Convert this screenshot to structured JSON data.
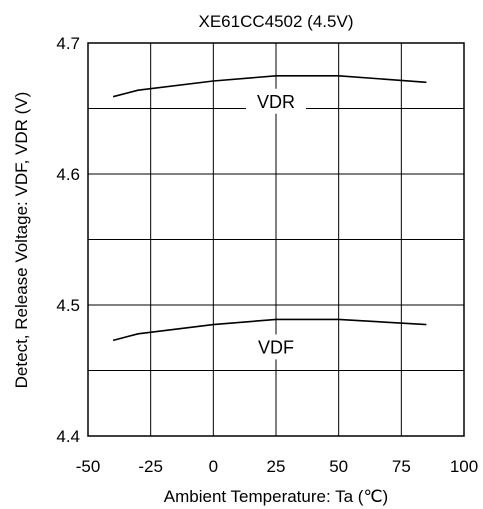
{
  "chart_data": {
    "type": "line",
    "title": "XE61CC4502 (4.5V)",
    "xlabel": "Ambient Temperature: Ta (℃)",
    "ylabel": "Detect, Release Voltage: VDF, VDR (V)",
    "xlim": [
      -50,
      100
    ],
    "ylim": [
      4.4,
      4.7
    ],
    "xticks": [
      "-50",
      "-25",
      "0",
      "25",
      "50",
      "75",
      "100"
    ],
    "yticks": [
      "4.4",
      "4.5",
      "4.6",
      "4.7"
    ],
    "grid": true,
    "line_color": "#000000",
    "series": [
      {
        "name": "VDR",
        "x": [
          -40,
          -30,
          0,
          25,
          50,
          85
        ],
        "y": [
          4.659,
          4.664,
          4.671,
          4.675,
          4.675,
          4.67
        ]
      },
      {
        "name": "VDF",
        "x": [
          -40,
          -30,
          0,
          25,
          50,
          85
        ],
        "y": [
          4.473,
          4.478,
          4.485,
          4.489,
          4.489,
          4.485
        ]
      }
    ]
  }
}
